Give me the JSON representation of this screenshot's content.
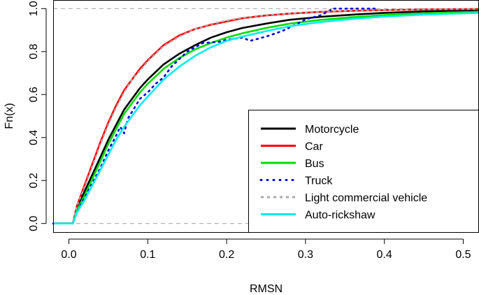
{
  "chart_data": {
    "type": "line",
    "title": "",
    "xlabel": "RMSN",
    "ylabel": "Fn(x)",
    "xlim": [
      -0.02,
      0.52
    ],
    "ylim": [
      -0.04,
      1.04
    ],
    "x_ticks": [
      "0.0",
      "0.1",
      "0.2",
      "0.3",
      "0.4",
      "0.5"
    ],
    "y_ticks": [
      "0.0",
      "0.2",
      "0.4",
      "0.6",
      "0.8",
      "1.0"
    ],
    "reference_lines": [
      0.0,
      1.0
    ],
    "grid": false,
    "legend_position": "bottom-right",
    "series": [
      {
        "name": "Motorcycle",
        "color": "#000000",
        "style": "solid",
        "points": [
          [
            -0.02,
            0
          ],
          [
            0.005,
            0
          ],
          [
            0.01,
            0.07
          ],
          [
            0.02,
            0.15
          ],
          [
            0.03,
            0.23
          ],
          [
            0.04,
            0.31
          ],
          [
            0.05,
            0.39
          ],
          [
            0.06,
            0.46
          ],
          [
            0.07,
            0.53
          ],
          [
            0.08,
            0.58
          ],
          [
            0.09,
            0.63
          ],
          [
            0.1,
            0.67
          ],
          [
            0.12,
            0.74
          ],
          [
            0.14,
            0.79
          ],
          [
            0.16,
            0.83
          ],
          [
            0.18,
            0.865
          ],
          [
            0.2,
            0.89
          ],
          [
            0.22,
            0.91
          ],
          [
            0.25,
            0.93
          ],
          [
            0.28,
            0.948
          ],
          [
            0.32,
            0.962
          ],
          [
            0.36,
            0.972
          ],
          [
            0.4,
            0.98
          ],
          [
            0.45,
            0.987
          ],
          [
            0.52,
            0.993
          ]
        ]
      },
      {
        "name": "Car",
        "color": "#ff0000",
        "style": "solid",
        "points": [
          [
            -0.02,
            0
          ],
          [
            0.005,
            0
          ],
          [
            0.01,
            0.08
          ],
          [
            0.02,
            0.18
          ],
          [
            0.03,
            0.28
          ],
          [
            0.04,
            0.38
          ],
          [
            0.05,
            0.47
          ],
          [
            0.06,
            0.55
          ],
          [
            0.07,
            0.62
          ],
          [
            0.08,
            0.67
          ],
          [
            0.09,
            0.72
          ],
          [
            0.1,
            0.76
          ],
          [
            0.12,
            0.83
          ],
          [
            0.14,
            0.875
          ],
          [
            0.16,
            0.905
          ],
          [
            0.18,
            0.925
          ],
          [
            0.2,
            0.94
          ],
          [
            0.22,
            0.955
          ],
          [
            0.25,
            0.968
          ],
          [
            0.28,
            0.977
          ],
          [
            0.32,
            0.985
          ],
          [
            0.36,
            0.99
          ],
          [
            0.4,
            0.993
          ],
          [
            0.45,
            0.996
          ],
          [
            0.52,
            0.998
          ]
        ]
      },
      {
        "name": "Bus",
        "color": "#00dd00",
        "style": "solid",
        "points": [
          [
            -0.02,
            0
          ],
          [
            0.005,
            0
          ],
          [
            0.01,
            0.06
          ],
          [
            0.02,
            0.13
          ],
          [
            0.03,
            0.21
          ],
          [
            0.04,
            0.29
          ],
          [
            0.05,
            0.37
          ],
          [
            0.06,
            0.44
          ],
          [
            0.07,
            0.51
          ],
          [
            0.08,
            0.56
          ],
          [
            0.09,
            0.61
          ],
          [
            0.1,
            0.65
          ],
          [
            0.12,
            0.72
          ],
          [
            0.14,
            0.77
          ],
          [
            0.16,
            0.81
          ],
          [
            0.18,
            0.84
          ],
          [
            0.2,
            0.865
          ],
          [
            0.22,
            0.885
          ],
          [
            0.25,
            0.91
          ],
          [
            0.28,
            0.93
          ],
          [
            0.32,
            0.948
          ],
          [
            0.36,
            0.96
          ],
          [
            0.4,
            0.97
          ],
          [
            0.45,
            0.978
          ],
          [
            0.52,
            0.985
          ]
        ]
      },
      {
        "name": "Truck",
        "color": "#0000dd",
        "style": "dotted",
        "points": [
          [
            -0.02,
            0
          ],
          [
            0.005,
            0
          ],
          [
            0.01,
            0.05
          ],
          [
            0.02,
            0.12
          ],
          [
            0.03,
            0.19
          ],
          [
            0.04,
            0.26
          ],
          [
            0.05,
            0.34
          ],
          [
            0.06,
            0.41
          ],
          [
            0.065,
            0.45
          ],
          [
            0.07,
            0.42
          ],
          [
            0.075,
            0.49
          ],
          [
            0.08,
            0.52
          ],
          [
            0.09,
            0.58
          ],
          [
            0.1,
            0.61
          ],
          [
            0.11,
            0.65
          ],
          [
            0.12,
            0.68
          ],
          [
            0.13,
            0.73
          ],
          [
            0.15,
            0.8
          ],
          [
            0.17,
            0.84
          ],
          [
            0.19,
            0.845
          ],
          [
            0.2,
            0.855
          ],
          [
            0.22,
            0.865
          ],
          [
            0.23,
            0.85
          ],
          [
            0.25,
            0.87
          ],
          [
            0.27,
            0.895
          ],
          [
            0.29,
            0.93
          ],
          [
            0.3,
            0.95
          ],
          [
            0.32,
            0.97
          ],
          [
            0.335,
            1.0
          ],
          [
            0.39,
            1.0
          ]
        ]
      },
      {
        "name": "Light commercial vehicle",
        "color": "#aaaaaa",
        "style": "dashed",
        "points": [
          [
            -0.02,
            0
          ],
          [
            0.005,
            0
          ],
          [
            0.01,
            0.08
          ],
          [
            0.02,
            0.17
          ],
          [
            0.03,
            0.27
          ],
          [
            0.04,
            0.37
          ],
          [
            0.05,
            0.46
          ],
          [
            0.06,
            0.54
          ],
          [
            0.07,
            0.61
          ],
          [
            0.08,
            0.67
          ],
          [
            0.09,
            0.71
          ],
          [
            0.1,
            0.755
          ],
          [
            0.12,
            0.825
          ],
          [
            0.14,
            0.87
          ],
          [
            0.16,
            0.905
          ],
          [
            0.18,
            0.928
          ],
          [
            0.2,
            0.944
          ],
          [
            0.22,
            0.957
          ],
          [
            0.25,
            0.97
          ],
          [
            0.28,
            0.978
          ],
          [
            0.32,
            0.986
          ],
          [
            0.36,
            0.991
          ],
          [
            0.4,
            0.994
          ],
          [
            0.45,
            0.996
          ],
          [
            0.52,
            0.998
          ]
        ]
      },
      {
        "name": "Auto-rickshaw",
        "color": "#00eeee",
        "style": "solid",
        "points": [
          [
            -0.02,
            0
          ],
          [
            0.005,
            0
          ],
          [
            0.01,
            0.05
          ],
          [
            0.02,
            0.11
          ],
          [
            0.03,
            0.18
          ],
          [
            0.04,
            0.25
          ],
          [
            0.05,
            0.32
          ],
          [
            0.06,
            0.39
          ],
          [
            0.07,
            0.45
          ],
          [
            0.08,
            0.5
          ],
          [
            0.09,
            0.55
          ],
          [
            0.1,
            0.59
          ],
          [
            0.12,
            0.67
          ],
          [
            0.14,
            0.73
          ],
          [
            0.16,
            0.78
          ],
          [
            0.18,
            0.82
          ],
          [
            0.2,
            0.85
          ],
          [
            0.22,
            0.87
          ],
          [
            0.25,
            0.895
          ],
          [
            0.28,
            0.918
          ],
          [
            0.32,
            0.938
          ],
          [
            0.36,
            0.952
          ],
          [
            0.4,
            0.963
          ],
          [
            0.45,
            0.972
          ],
          [
            0.52,
            0.98
          ]
        ]
      }
    ]
  }
}
